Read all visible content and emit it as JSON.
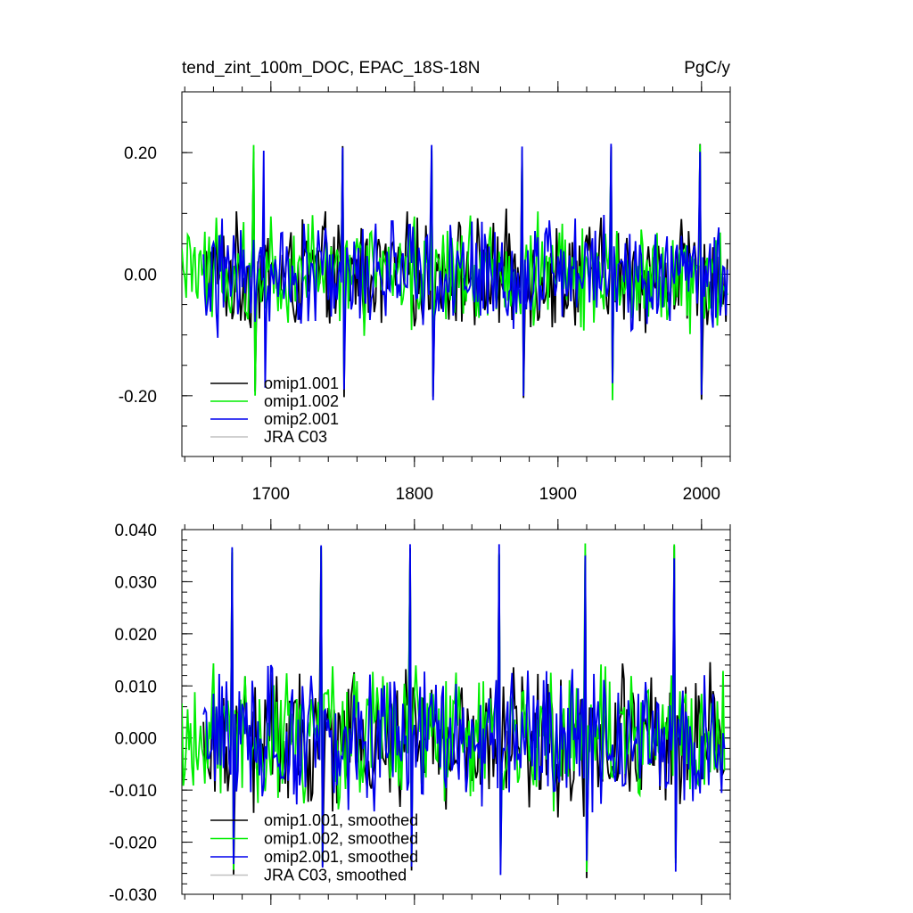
{
  "figure": {
    "title_left": "tend_zint_100m_DOC, EPAC_18S-18N",
    "title_right": "PgC/y"
  },
  "chart_data": [
    {
      "type": "line",
      "title": "tend_zint_100m_DOC, EPAC_18S-18N",
      "units": "PgC/y",
      "xlim": [
        1638,
        2020
      ],
      "ylim": [
        -0.3,
        0.3
      ],
      "xticks": [
        1700,
        1800,
        1900,
        2000
      ],
      "xtick_labels": [
        "1700",
        "1800",
        "1900",
        "2000"
      ],
      "yticks": [
        -0.2,
        0.0,
        0.2
      ],
      "ytick_labels": [
        "-0.20",
        "0.00",
        "0.20"
      ],
      "legend": [
        "omip1.001",
        "omip1.002",
        "omip2.001",
        "JRA C03"
      ],
      "legend_position": "bottom-left",
      "series": [
        {
          "name": "omip1.001",
          "color": "#000000",
          "x_start": 1653,
          "x_end": 2018,
          "x_peaks": [
            1688,
            1750,
            1812,
            1875,
            1937,
            1999
          ],
          "peak_value": 0.215,
          "trough_value": -0.21
        },
        {
          "name": "omip1.002",
          "color": "#00ee00",
          "x_start": 1638,
          "x_end": 2018,
          "x_peaks": [
            1688,
            1750,
            1812,
            1875,
            1937,
            1999
          ],
          "peak_value": 0.215,
          "trough_value": -0.21
        },
        {
          "name": "omip2.001",
          "color": "#0000ee",
          "x_start": 1653,
          "x_end": 2018,
          "x_peaks": [
            1695,
            1750,
            1812,
            1875,
            1937,
            1999
          ],
          "peak_value": 0.215,
          "trough_value": -0.21
        },
        {
          "name": "JRA C03",
          "color": "#c0c0c0",
          "x_start": null,
          "x_end": null
        }
      ]
    },
    {
      "type": "line",
      "title": "",
      "units": "PgC/y",
      "xlim": [
        1638,
        2020
      ],
      "ylim": [
        -0.03,
        0.04
      ],
      "xticks": [
        1700,
        1800,
        1900,
        2000
      ],
      "xtick_labels": [],
      "yticks": [
        -0.03,
        -0.02,
        -0.01,
        0.0,
        0.01,
        0.02,
        0.03,
        0.04
      ],
      "ytick_labels": [
        "-0.030",
        "-0.020",
        "-0.010",
        "0.000",
        "0.010",
        "0.020",
        "0.030",
        "0.040"
      ],
      "legend": [
        "omip1.001, smoothed",
        "omip1.002, smoothed",
        "omip2.001, smoothed",
        "JRA C03, smoothed"
      ],
      "legend_position": "bottom-left",
      "series": [
        {
          "name": "omip1.001, smoothed",
          "color": "#000000",
          "x_start": 1653,
          "x_end": 2016,
          "x_peaks": [
            1673,
            1735,
            1797,
            1859,
            1919,
            1981
          ],
          "peak_value": 0.038,
          "trough_value": -0.027
        },
        {
          "name": "omip1.002, smoothed",
          "color": "#00ee00",
          "x_start": 1638,
          "x_end": 2016,
          "x_peaks": [
            1673,
            1735,
            1797,
            1859,
            1919,
            1981
          ],
          "peak_value": 0.038,
          "trough_value": -0.027
        },
        {
          "name": "omip2.001, smoothed",
          "color": "#0000ee",
          "x_start": 1653,
          "x_end": 2016,
          "x_peaks": [
            1673,
            1735,
            1797,
            1859,
            1919,
            1981
          ],
          "peak_value": 0.038,
          "trough_value": -0.027
        },
        {
          "name": "JRA C03, smoothed",
          "color": "#c0c0c0",
          "x_start": null,
          "x_end": null
        }
      ]
    }
  ]
}
